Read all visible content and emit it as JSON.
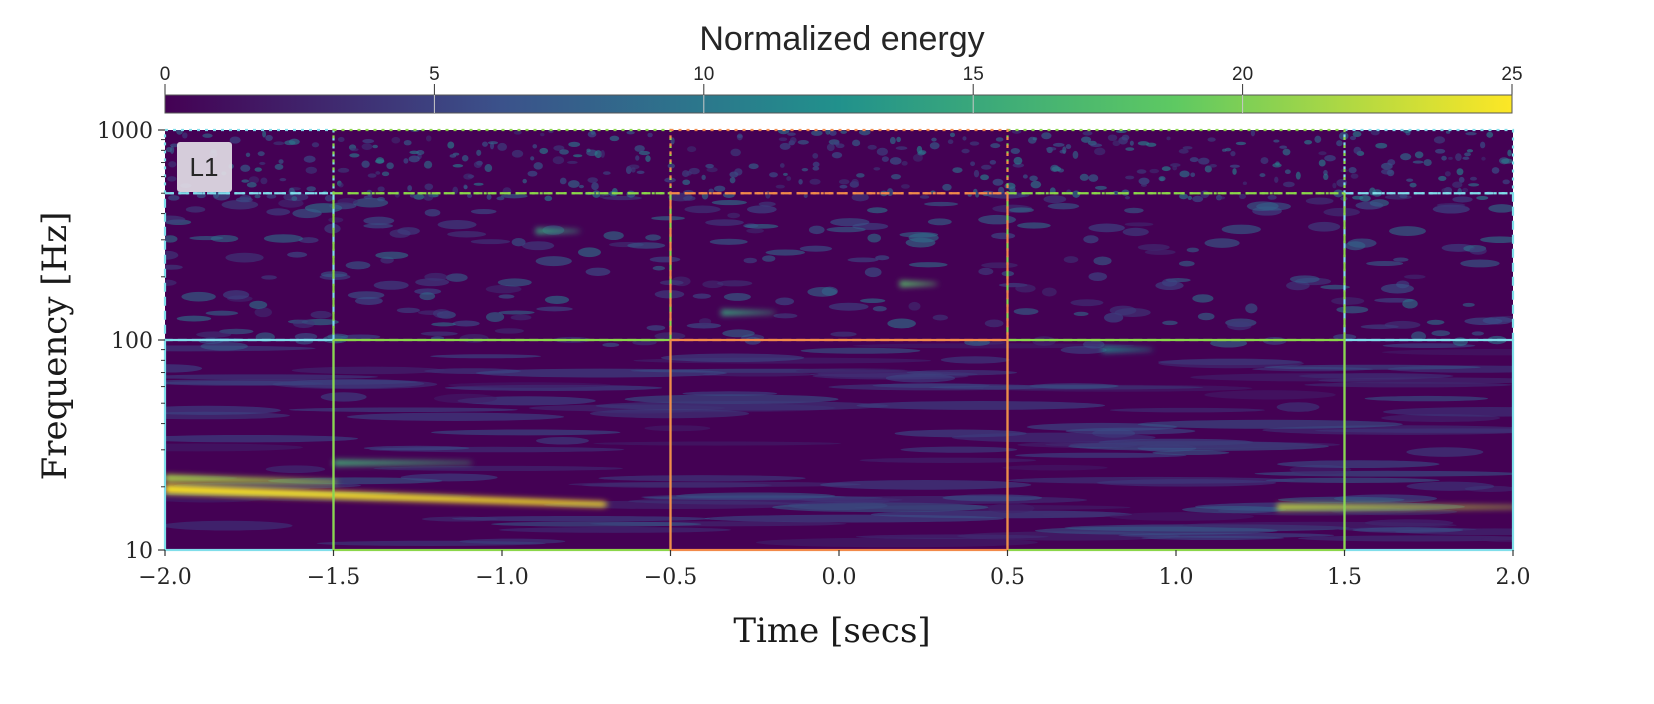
{
  "chart_data": {
    "type": "heatmap",
    "title": "",
    "detector_label": "L1",
    "colorbar": {
      "label": "Normalized energy",
      "range": [
        0,
        25
      ],
      "ticks": [
        0,
        5,
        10,
        15,
        20,
        25
      ],
      "tick_labels": [
        "0",
        "5",
        "10",
        "15",
        "20",
        "25"
      ],
      "colormap": [
        "#440154",
        "#3b528b",
        "#21918c",
        "#5ec962",
        "#fde725"
      ]
    },
    "x_axis": {
      "label": "Time [secs]",
      "range": [
        -2.0,
        2.0
      ],
      "ticks": [
        -2.0,
        -1.5,
        -1.0,
        -0.5,
        0.0,
        0.5,
        1.0,
        1.5,
        2.0
      ],
      "tick_labels": [
        "−2.0",
        "−1.5",
        "−1.0",
        "−0.5",
        "0.0",
        "0.5",
        "1.0",
        "1.5",
        "2.0"
      ]
    },
    "y_axis": {
      "label": "Frequency [Hz]",
      "scale": "log",
      "range": [
        10,
        1000
      ],
      "ticks": [
        10,
        100,
        1000
      ],
      "tick_labels": [
        "10",
        "100",
        "1000"
      ]
    },
    "tiles": [
      {
        "t": [
          -2.0,
          -1.5
        ],
        "f": [
          10,
          100
        ],
        "color": "#80deea",
        "style": "solid"
      },
      {
        "t": [
          1.5,
          2.0
        ],
        "f": [
          10,
          100
        ],
        "color": "#80deea",
        "style": "solid"
      },
      {
        "t": [
          -1.5,
          -0.5
        ],
        "f": [
          10,
          100
        ],
        "color": "#8bd64a",
        "style": "solid"
      },
      {
        "t": [
          0.5,
          1.5
        ],
        "f": [
          10,
          100
        ],
        "color": "#8bd64a",
        "style": "solid"
      },
      {
        "t": [
          -0.5,
          0.5
        ],
        "f": [
          10,
          100
        ],
        "color": "#f28a4a",
        "style": "solid"
      },
      {
        "t": [
          -2.0,
          -1.5
        ],
        "f": [
          100,
          500
        ],
        "color": "#80deea",
        "style": "dashed"
      },
      {
        "t": [
          1.5,
          2.0
        ],
        "f": [
          100,
          500
        ],
        "color": "#80deea",
        "style": "dashed"
      },
      {
        "t": [
          -1.5,
          -0.5
        ],
        "f": [
          100,
          500
        ],
        "color": "#8bd64a",
        "style": "dashed"
      },
      {
        "t": [
          0.5,
          1.5
        ],
        "f": [
          100,
          500
        ],
        "color": "#8bd64a",
        "style": "dashed"
      },
      {
        "t": [
          -0.5,
          0.5
        ],
        "f": [
          100,
          500
        ],
        "color": "#f28a4a",
        "style": "dashed"
      },
      {
        "t": [
          -2.0,
          -1.5
        ],
        "f": [
          500,
          1000
        ],
        "color": "#80deea",
        "style": "dotted"
      },
      {
        "t": [
          1.5,
          2.0
        ],
        "f": [
          500,
          1000
        ],
        "color": "#80deea",
        "style": "dotted"
      },
      {
        "t": [
          -1.5,
          -0.5
        ],
        "f": [
          500,
          1000
        ],
        "color": "#8bd64a",
        "style": "dotted"
      },
      {
        "t": [
          0.5,
          1.5
        ],
        "f": [
          500,
          1000
        ],
        "color": "#8bd64a",
        "style": "dotted"
      },
      {
        "t": [
          -0.5,
          0.5
        ],
        "f": [
          500,
          1000
        ],
        "color": "#f28a4a",
        "style": "dotted"
      }
    ],
    "signals": [
      {
        "t": [
          -2.0,
          -0.7
        ],
        "f": [
          19.5,
          16.5
        ],
        "energy": 25
      },
      {
        "t": [
          -2.0,
          -1.5
        ],
        "f": [
          22,
          21
        ],
        "energy": 22
      },
      {
        "t": [
          -1.5,
          -1.1
        ],
        "f": [
          26,
          26
        ],
        "energy": 16
      },
      {
        "t": [
          1.3,
          2.0
        ],
        "f": [
          16,
          16
        ],
        "energy": 23
      },
      {
        "t": [
          -0.35,
          -0.2
        ],
        "f": [
          135,
          135
        ],
        "energy": 15
      },
      {
        "t": [
          0.18,
          0.28
        ],
        "f": [
          185,
          185
        ],
        "energy": 18
      },
      {
        "t": [
          -0.9,
          -0.78
        ],
        "f": [
          330,
          330
        ],
        "energy": 15
      },
      {
        "t": [
          0.78,
          0.92
        ],
        "f": [
          90,
          90
        ],
        "energy": 12
      }
    ]
  }
}
